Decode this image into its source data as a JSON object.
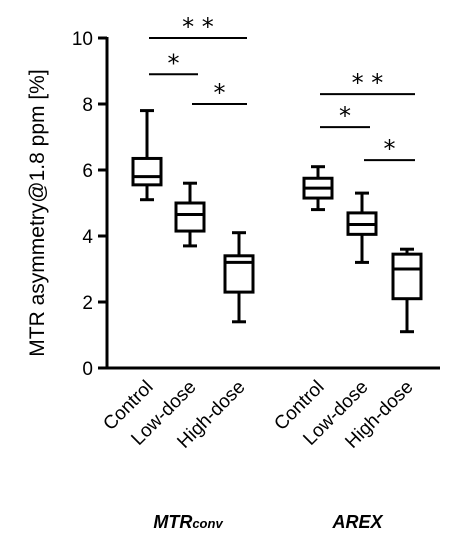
{
  "chart_data": {
    "type": "box",
    "ylabel": "MTR asymmetry@1.8 ppm  [%]",
    "ylim": [
      0,
      10
    ],
    "yticks": [
      "0",
      "2",
      "4",
      "6",
      "8",
      "10"
    ],
    "grid": false,
    "groups": [
      {
        "label_main": "MTR",
        "label_sub": "conv",
        "categories": [
          "Control",
          "Low-dose",
          "High-dose"
        ],
        "boxes": [
          {
            "min": 5.1,
            "q1": 5.55,
            "median": 5.8,
            "q3": 6.35,
            "max": 7.8
          },
          {
            "min": 3.7,
            "q1": 4.15,
            "median": 4.65,
            "q3": 5.0,
            "max": 5.6
          },
          {
            "min": 1.4,
            "q1": 2.3,
            "median": 3.2,
            "q3": 3.4,
            "max": 4.1
          }
        ],
        "significance": [
          {
            "from": 0,
            "to": 2,
            "y": 10.0,
            "label": "* *"
          },
          {
            "from": 0,
            "to": 1,
            "y": 8.9,
            "label": "*"
          },
          {
            "from": 1,
            "to": 2,
            "y": 8.0,
            "label": "*"
          }
        ]
      },
      {
        "label_main": "AREX",
        "label_sub": "",
        "categories": [
          "Control",
          "Low-dose",
          "High-dose"
        ],
        "boxes": [
          {
            "min": 4.8,
            "q1": 5.15,
            "median": 5.45,
            "q3": 5.75,
            "max": 6.1
          },
          {
            "min": 3.2,
            "q1": 4.05,
            "median": 4.35,
            "q3": 4.7,
            "max": 5.3
          },
          {
            "min": 1.1,
            "q1": 2.1,
            "median": 3.0,
            "q3": 3.45,
            "max": 3.6
          }
        ],
        "significance": [
          {
            "from": 0,
            "to": 2,
            "y": 8.3,
            "label": "* *"
          },
          {
            "from": 0,
            "to": 1,
            "y": 7.3,
            "label": "*"
          },
          {
            "from": 1,
            "to": 2,
            "y": 6.3,
            "label": "*"
          }
        ]
      }
    ]
  }
}
